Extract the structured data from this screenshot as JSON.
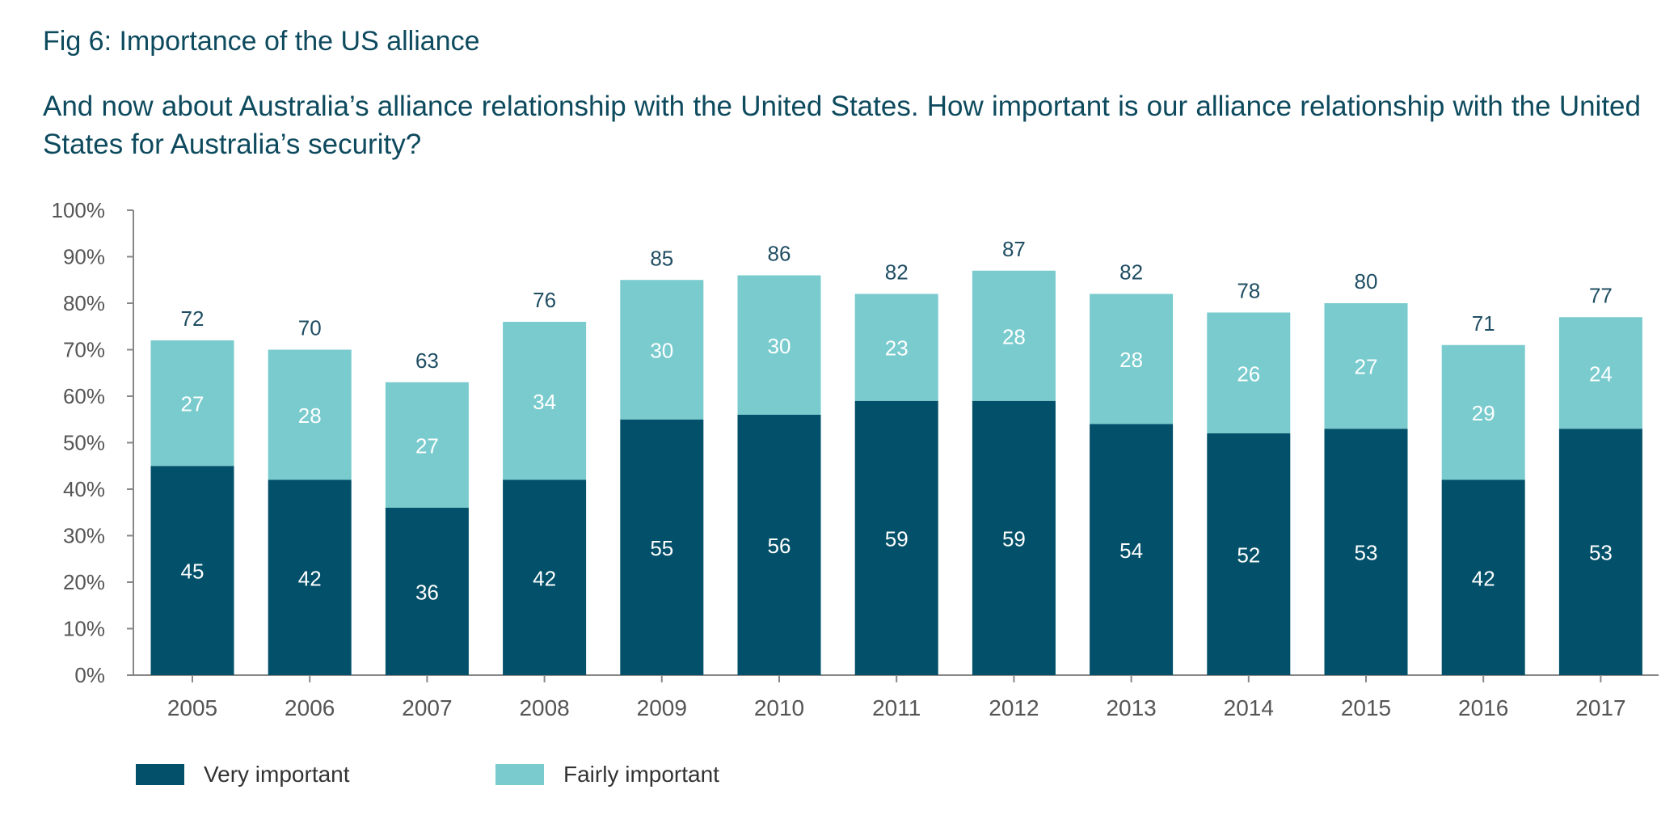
{
  "title": "Fig 6: Importance of the US alliance",
  "subtitle": "And now about Australia’s alliance relationship with the United States. How important is our alliance relationship with the United States for Australia’s security?",
  "chart_data": {
    "type": "bar",
    "stacked": true,
    "categories": [
      "2005",
      "2006",
      "2007",
      "2008",
      "2009",
      "2010",
      "2011",
      "2012",
      "2013",
      "2014",
      "2015",
      "2016",
      "2017"
    ],
    "series": [
      {
        "name": "Very important",
        "color": "#02506a",
        "values": [
          45,
          42,
          36,
          42,
          55,
          56,
          59,
          59,
          54,
          52,
          53,
          42,
          53
        ]
      },
      {
        "name": "Fairly important",
        "color": "#79cbce",
        "values": [
          27,
          28,
          27,
          34,
          30,
          30,
          23,
          28,
          28,
          26,
          27,
          29,
          24
        ]
      }
    ],
    "totals": [
      72,
      70,
      63,
      76,
      85,
      86,
      82,
      87,
      82,
      78,
      80,
      71,
      77
    ],
    "yticks": [
      "0%",
      "10%",
      "20%",
      "30%",
      "40%",
      "50%",
      "60%",
      "70%",
      "80%",
      "90%",
      "100%"
    ],
    "ylim": [
      0,
      100
    ],
    "xlabel": "",
    "ylabel": "",
    "legend": "bottom-left"
  }
}
